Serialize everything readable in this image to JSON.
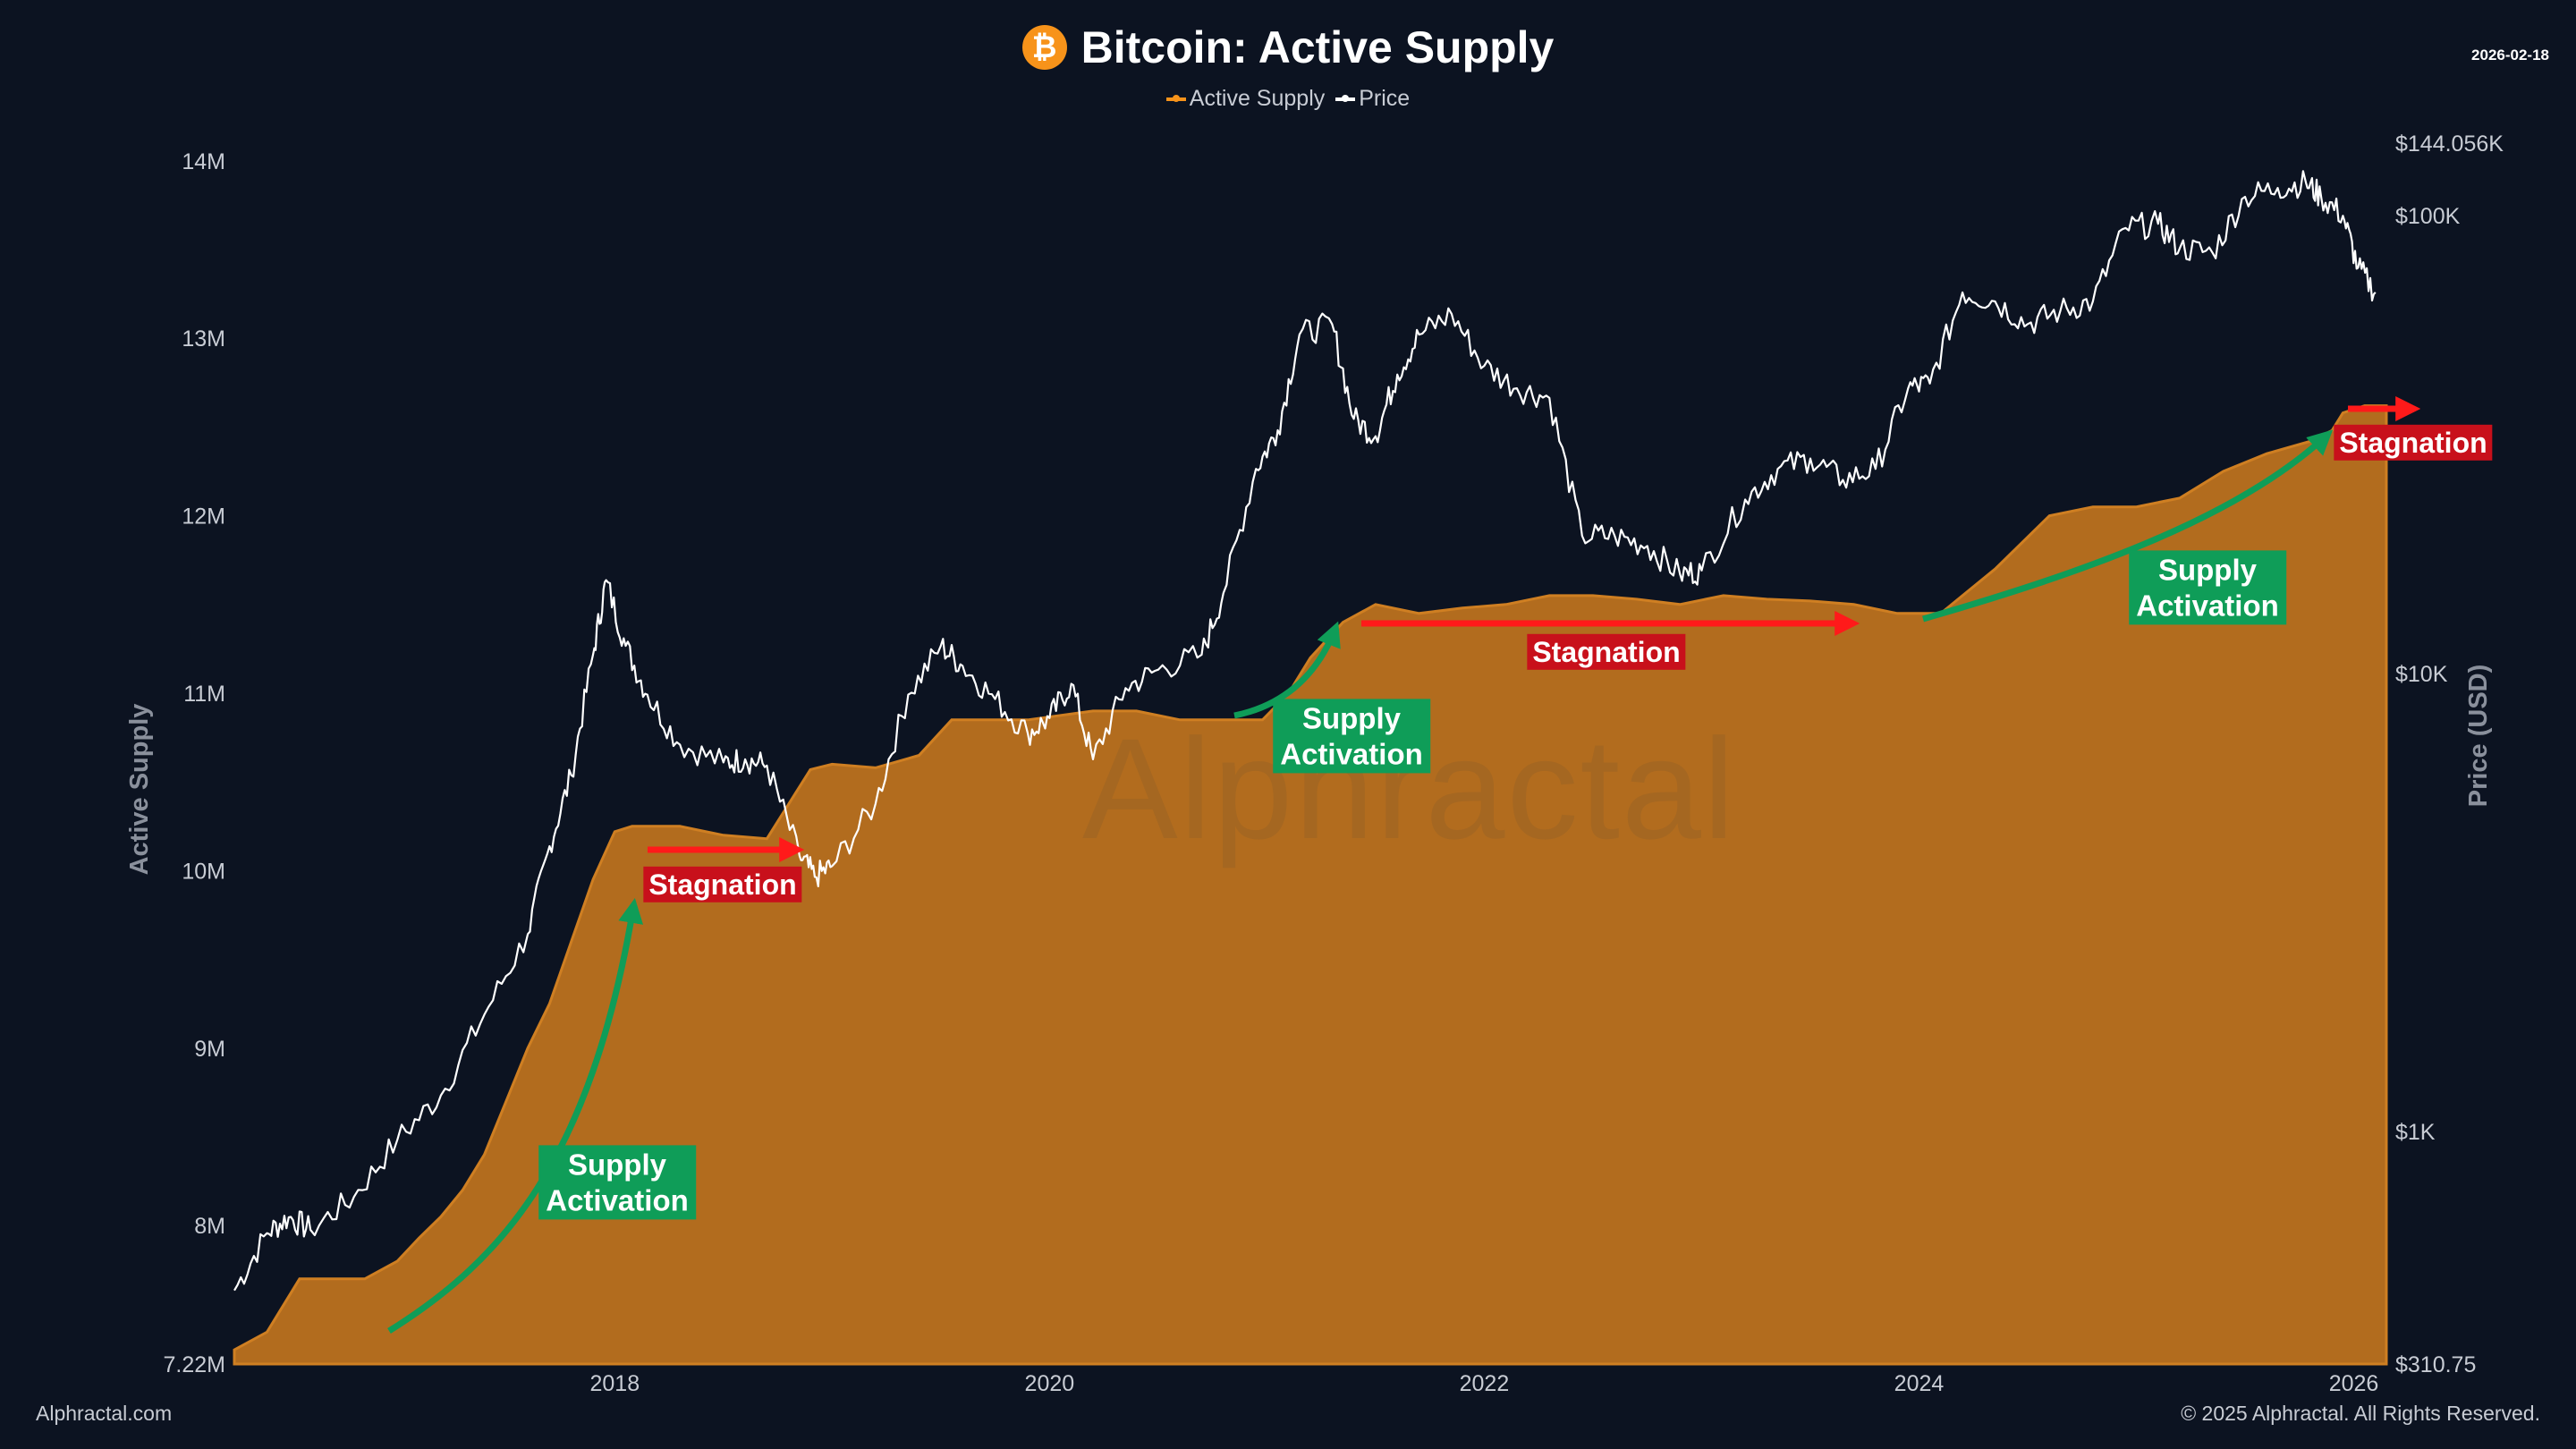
{
  "header": {
    "title": "Bitcoin: Active Supply",
    "logo_glyph": "₿",
    "date": "2026-02-18"
  },
  "legend": {
    "active_supply": "Active Supply",
    "price": "Price"
  },
  "footer": {
    "left": "Alphractal.com",
    "right": "© 2025 Alphractal. All Rights Reserved."
  },
  "watermark": "Alphractal",
  "colors": {
    "background": "#0c1321",
    "supply_fill": "#b26c1e",
    "supply_line": "#cf7f22",
    "price_line": "#ffffff",
    "green": "#0f9d58",
    "red": "#ff1a1a"
  },
  "chart_data": {
    "type": "area",
    "title": "Bitcoin: Active Supply",
    "xlabel": "",
    "ylabel": "Active Supply",
    "y2label": "Price (USD)",
    "xlim": [
      2016.25,
      2026.15
    ],
    "ylim": [
      7220000,
      14100000
    ],
    "y2lim": [
      310.75,
      144056
    ],
    "y2scale": "log",
    "x_ticks": [
      2018,
      2020,
      2022,
      2024,
      2026
    ],
    "x_tick_labels": [
      "2018",
      "2020",
      "2022",
      "2024",
      "2026"
    ],
    "y_ticks": [
      7220000,
      8000000,
      9000000,
      10000000,
      11000000,
      12000000,
      13000000,
      14000000
    ],
    "y_tick_labels": [
      "7.22M",
      "8M",
      "9M",
      "10M",
      "11M",
      "12M",
      "13M",
      "14M"
    ],
    "y2_ticks": [
      310.75,
      1000,
      10000,
      100000,
      144056
    ],
    "y2_tick_labels": [
      "$310.75",
      "$1K",
      "$10K",
      "$100K",
      "$144.056K"
    ],
    "series": [
      {
        "name": "Active Supply",
        "kind": "area",
        "x": [
          2016.25,
          2016.4,
          2016.55,
          2016.7,
          2016.85,
          2017.0,
          2017.1,
          2017.2,
          2017.3,
          2017.4,
          2017.5,
          2017.6,
          2017.7,
          2017.8,
          2017.9,
          2018.0,
          2018.08,
          2018.3,
          2018.5,
          2018.7,
          2018.9,
          2019.0,
          2019.2,
          2019.4,
          2019.55,
          2019.7,
          2019.9,
          2020.2,
          2020.4,
          2020.6,
          2020.8,
          2020.98,
          2021.1,
          2021.2,
          2021.35,
          2021.5,
          2021.7,
          2021.9,
          2022.1,
          2022.3,
          2022.5,
          2022.7,
          2022.9,
          2023.1,
          2023.3,
          2023.5,
          2023.7,
          2023.9,
          2024.1,
          2024.2,
          2024.35,
          2024.5,
          2024.6,
          2024.8,
          2025.0,
          2025.2,
          2025.4,
          2025.6,
          2025.8,
          2025.9,
          2025.95,
          2026.05,
          2026.15
        ],
        "values": [
          7300000,
          7400000,
          7700000,
          7700000,
          7700000,
          7800000,
          7930000,
          8050000,
          8200000,
          8400000,
          8700000,
          9000000,
          9250000,
          9600000,
          9950000,
          10220000,
          10250000,
          10250000,
          10200000,
          10180000,
          10570000,
          10600000,
          10580000,
          10650000,
          10850000,
          10850000,
          10850000,
          10900000,
          10900000,
          10850000,
          10850000,
          10850000,
          11000000,
          11200000,
          11400000,
          11500000,
          11450000,
          11480000,
          11500000,
          11550000,
          11550000,
          11530000,
          11500000,
          11550000,
          11530000,
          11520000,
          11500000,
          11450000,
          11450000,
          11550000,
          11700000,
          11880000,
          12000000,
          12050000,
          12050000,
          12100000,
          12250000,
          12350000,
          12420000,
          12480000,
          12580000,
          12620000,
          12620000
        ]
      },
      {
        "name": "Price",
        "kind": "line",
        "y_axis": "right",
        "x": [
          2016.25,
          2016.4,
          2016.5,
          2016.6,
          2016.8,
          2017.0,
          2017.2,
          2017.4,
          2017.6,
          2017.7,
          2017.8,
          2017.9,
          2017.96,
          2018.05,
          2018.15,
          2018.3,
          2018.5,
          2018.6,
          2018.7,
          2018.85,
          2018.92,
          2019.0,
          2019.2,
          2019.35,
          2019.5,
          2019.6,
          2019.75,
          2019.9,
          2020.0,
          2020.1,
          2020.2,
          2020.35,
          2020.5,
          2020.7,
          2020.8,
          2020.95,
          2021.05,
          2021.15,
          2021.3,
          2021.4,
          2021.5,
          2021.6,
          2021.7,
          2021.85,
          2022.0,
          2022.15,
          2022.3,
          2022.45,
          2022.6,
          2022.75,
          2022.9,
          2023.0,
          2023.2,
          2023.35,
          2023.5,
          2023.65,
          2023.8,
          2023.95,
          2024.05,
          2024.2,
          2024.35,
          2024.5,
          2024.65,
          2024.8,
          2024.95,
          2025.1,
          2025.2,
          2025.35,
          2025.5,
          2025.65,
          2025.78,
          2025.85,
          2025.95,
          2026.02,
          2026.1
        ],
        "values": [
          450,
          600,
          650,
          610,
          720,
          960,
          1200,
          1800,
          2700,
          4200,
          6000,
          11000,
          16000,
          11500,
          9000,
          7000,
          6400,
          6500,
          6300,
          4000,
          3600,
          3800,
          5200,
          9000,
          11500,
          10400,
          8800,
          7400,
          8000,
          9500,
          6500,
          9300,
          10200,
          11000,
          15000,
          28000,
          34000,
          55000,
          58000,
          36000,
          33000,
          45000,
          55000,
          61000,
          47000,
          42000,
          40000,
          20000,
          20000,
          19000,
          16500,
          16800,
          24000,
          28000,
          29500,
          26500,
          28000,
          42000,
          43000,
          68000,
          65000,
          58000,
          62000,
          65000,
          94000,
          96000,
          85000,
          83000,
          110000,
          115000,
          118000,
          110000,
          100000,
          77000,
          68000
        ]
      }
    ],
    "annotations": [
      {
        "kind": "green",
        "lines": [
          "Supply",
          "Activation"
        ]
      },
      {
        "kind": "red",
        "lines": [
          "Stagnation"
        ]
      },
      {
        "kind": "green",
        "lines": [
          "Supply",
          "Activation"
        ]
      },
      {
        "kind": "red",
        "lines": [
          "Stagnation"
        ]
      },
      {
        "kind": "green",
        "lines": [
          "Supply",
          "Activation"
        ]
      },
      {
        "kind": "red",
        "lines": [
          "Stagnation"
        ]
      }
    ]
  }
}
